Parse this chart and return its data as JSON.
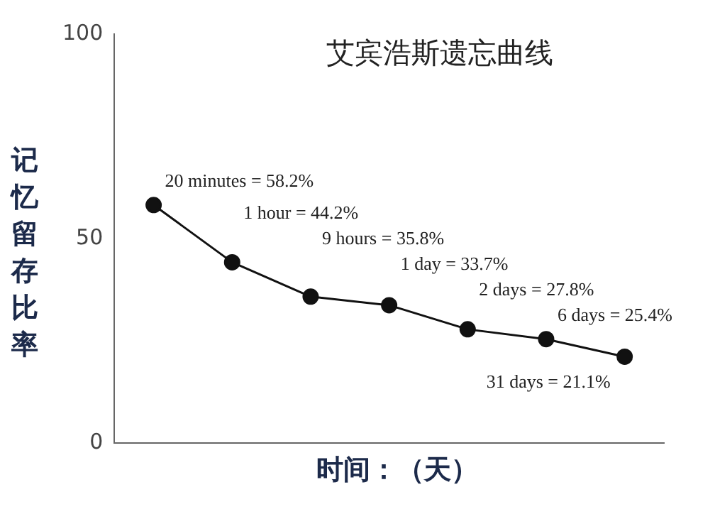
{
  "chart_data": {
    "type": "line",
    "title": "艾宾浩斯遗忘曲线",
    "xlabel": "时间：（天）",
    "ylabel": "记忆留存比率",
    "categories": [
      null,
      null,
      null,
      null,
      null,
      null,
      null
    ],
    "series": [
      {
        "color": "#111111",
        "values": [
          58.2,
          44.2,
          35.8,
          33.7,
          27.8,
          25.4,
          21.1
        ],
        "value_labels": [
          "20 minutes = 58.2%",
          "1 hour = 44.2%",
          "9 hours = 35.8%",
          "1 day = 33.7%",
          "2 days = 27.8%",
          "6 days = 25.4%",
          "31 days = 21.1%"
        ]
      }
    ],
    "ylim": [
      0,
      100
    ],
    "yticks": [
      0,
      50,
      100
    ],
    "grid": false,
    "legend": false,
    "marker": "circle",
    "line_style": "solid",
    "tick_labels": "y"
  }
}
